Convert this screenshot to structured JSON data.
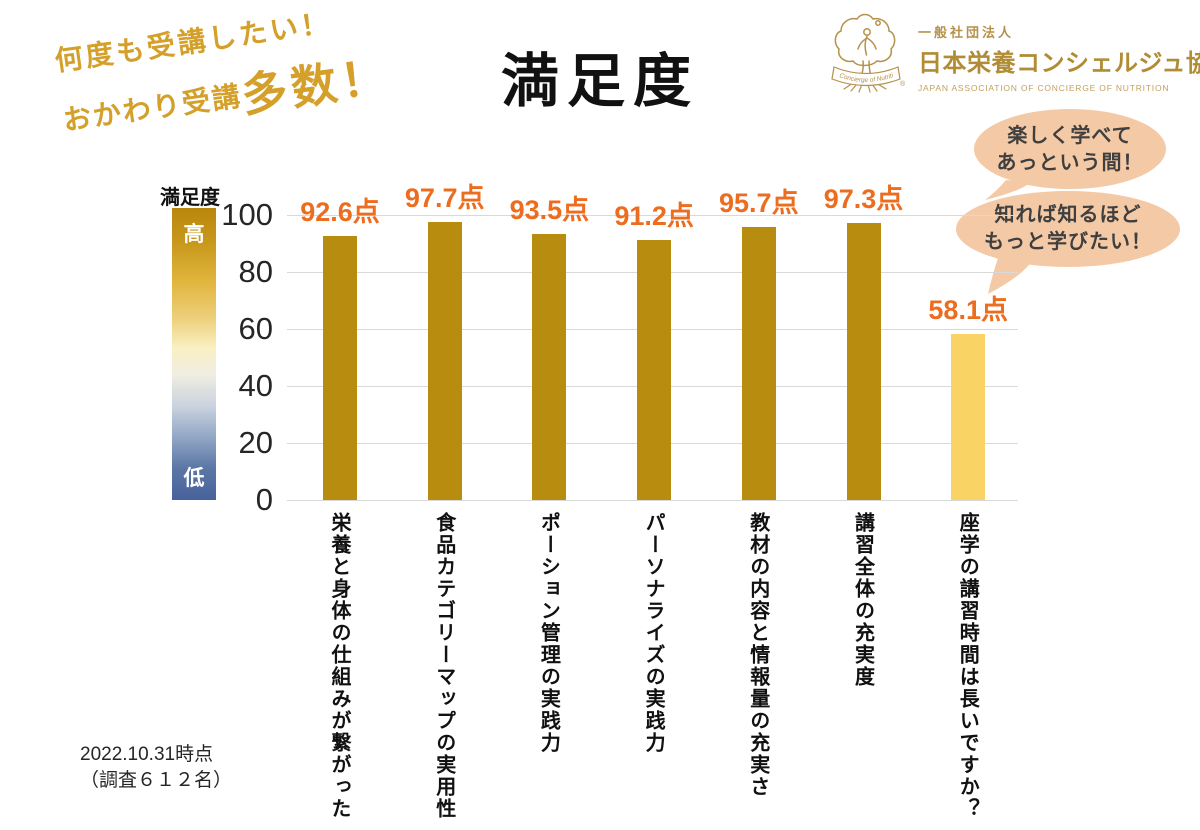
{
  "header": {
    "catch_line1": "何度も受講したい！",
    "catch_line2_small": "おかわり受講",
    "catch_line2_large": "多数！",
    "title": "満足度"
  },
  "logo": {
    "org_type": "一般社団法人",
    "org_name": "日本栄養コンシェルジュ協会",
    "org_name_en": "JAPAN ASSOCIATION OF CONCIERGE OF NUTRITION",
    "emblem_banner": "Concierge of Nutrition",
    "registered_mark": "®",
    "color": "#B5914B"
  },
  "speech_bubbles": [
    {
      "lines": [
        "楽しく学べて",
        "あっという間！"
      ]
    },
    {
      "lines": [
        "知れば知るほど",
        "もっと学びたい！"
      ]
    }
  ],
  "legend": {
    "title": "満足度",
    "high": "高",
    "low": "低"
  },
  "chart_data": {
    "type": "bar",
    "title": "満足度",
    "xlabel": "",
    "ylabel": "満足度",
    "categories": [
      "栄養と身体の仕組みが繋がった",
      "食品カテゴリーマップの実用性",
      "ポーション管理の実践力",
      "パーソナライズの実践力",
      "教材の内容と情報量の充実さ",
      "講習全体の充実度",
      "座学の講習時間は長いですか？"
    ],
    "values": [
      92.6,
      97.7,
      93.5,
      91.2,
      95.7,
      97.3,
      58.1
    ],
    "value_labels": [
      "92.6点",
      "97.7点",
      "93.5点",
      "91.2点",
      "95.7点",
      "97.3点",
      "58.1点"
    ],
    "unit": "点",
    "ylim": [
      0,
      100
    ],
    "yticks": [
      0,
      20,
      40,
      60,
      80,
      100
    ],
    "grid": true,
    "legend_position": "left-colorbar",
    "bar_color": "#B88D0F",
    "last_bar_color": "#FAD365",
    "value_label_color": "#EC6D1F",
    "gridline_color": "#D9D9D9"
  },
  "footnote": {
    "line1": "2022.10.31時点",
    "line2": "（調査６１２名）"
  }
}
